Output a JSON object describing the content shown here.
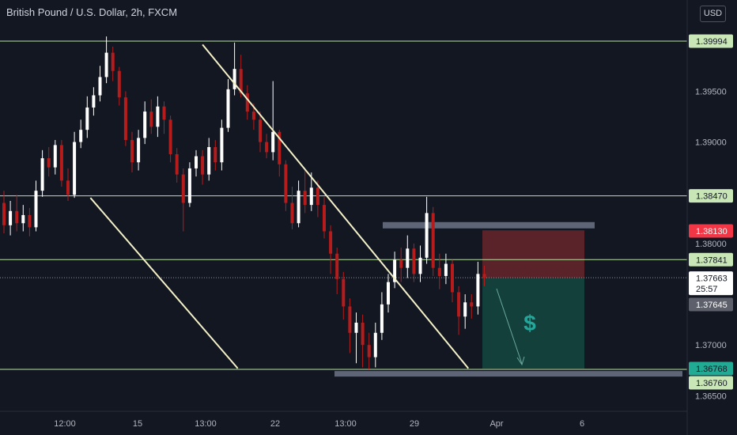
{
  "header": {
    "symbol_title": "British Pound / U.S. Dollar, 2h, FXCM",
    "currency_button": "USD"
  },
  "trade": {
    "icon": "$"
  },
  "colors": {
    "background": "#131722",
    "up_candle": "#ffffff",
    "down_candle": "#b71c1c",
    "hline": "#b7e4a3",
    "trendline": "#f5f2c8",
    "zone": "#5d6577",
    "stop_zone": "#5a2329",
    "target_zone": "#14403c"
  },
  "chart_data": {
    "type": "candlestick",
    "title": "British Pound / U.S. Dollar, 2h, FXCM",
    "ylim": [
      1.3625,
      1.4032
    ],
    "y_ticks": [
      "1.39500",
      "1.39000",
      "1.38000",
      "1.37000",
      "1.36500"
    ],
    "x_ticks": [
      "12:00",
      "15",
      "13:00",
      "22",
      "13:00",
      "29",
      "Apr",
      "6"
    ],
    "price_tags": [
      {
        "label": "1.39994",
        "kind": "level"
      },
      {
        "label": "1.38470",
        "kind": "level"
      },
      {
        "label": "1.38130",
        "kind": "stop"
      },
      {
        "label": "1.37841",
        "kind": "level"
      },
      {
        "label": "1.37663",
        "kind": "last",
        "countdown": "25:57"
      },
      {
        "label": "1.37645",
        "kind": "gray"
      },
      {
        "label": "1.36768",
        "kind": "target"
      },
      {
        "label": "1.36760",
        "kind": "level"
      }
    ],
    "horizontal_levels": [
      1.39994,
      1.3847,
      1.37841,
      1.3676
    ],
    "last_price": 1.37663,
    "resistance_zone": 1.3818,
    "support_zone": 1.3672,
    "position": {
      "type": "short",
      "entry": 1.37663,
      "stop": 1.3813,
      "target": 1.36768
    },
    "trendlines": [
      {
        "from": [
          31,
          1.3996
        ],
        "to": [
          72.5,
          1.3677
        ]
      },
      {
        "from": [
          13.5,
          1.3845
        ],
        "to": [
          36.5,
          1.3677
        ]
      }
    ],
    "candles": [
      [
        1.384,
        1.3818,
        1.3852,
        1.381
      ],
      [
        1.3818,
        1.3832,
        1.3842,
        1.3808
      ],
      [
        1.3832,
        1.382,
        1.3848,
        1.3812
      ],
      [
        1.382,
        1.3828,
        1.3838,
        1.3812
      ],
      [
        1.3828,
        1.3816,
        1.3835,
        1.3807
      ],
      [
        1.3816,
        1.3852,
        1.3862,
        1.3812
      ],
      [
        1.3852,
        1.3884,
        1.3892,
        1.3846
      ],
      [
        1.3884,
        1.3875,
        1.3895,
        1.3866
      ],
      [
        1.3875,
        1.3897,
        1.3902,
        1.3868
      ],
      [
        1.3897,
        1.3862,
        1.3902,
        1.3856
      ],
      [
        1.3862,
        1.3848,
        1.3874,
        1.3842
      ],
      [
        1.3848,
        1.39,
        1.391,
        1.3845
      ],
      [
        1.39,
        1.3912,
        1.3922,
        1.3894
      ],
      [
        1.3912,
        1.3934,
        1.3945,
        1.3904
      ],
      [
        1.3934,
        1.3946,
        1.3954,
        1.3926
      ],
      [
        1.3946,
        1.3964,
        1.3975,
        1.394
      ],
      [
        1.3964,
        1.3988,
        1.4004,
        1.3958
      ],
      [
        1.3988,
        1.397,
        1.3994,
        1.396
      ],
      [
        1.397,
        1.3944,
        1.3974,
        1.3936
      ],
      [
        1.3944,
        1.3902,
        1.395,
        1.3896
      ],
      [
        1.3902,
        1.388,
        1.391,
        1.387
      ],
      [
        1.388,
        1.3904,
        1.3912,
        1.3872
      ],
      [
        1.3904,
        1.393,
        1.394,
        1.3898
      ],
      [
        1.393,
        1.3915,
        1.3942,
        1.3908
      ],
      [
        1.3915,
        1.3935,
        1.3945,
        1.3905
      ],
      [
        1.3935,
        1.3922,
        1.394,
        1.3908
      ],
      [
        1.3922,
        1.3888,
        1.3926,
        1.388
      ],
      [
        1.3888,
        1.3868,
        1.3894,
        1.386
      ],
      [
        1.3868,
        1.384,
        1.3874,
        1.3812
      ],
      [
        1.384,
        1.3874,
        1.388,
        1.3836
      ],
      [
        1.3874,
        1.3886,
        1.3892,
        1.3866
      ],
      [
        1.3886,
        1.3868,
        1.3892,
        1.3858
      ],
      [
        1.3868,
        1.3895,
        1.3904,
        1.3862
      ],
      [
        1.3895,
        1.388,
        1.3902,
        1.3872
      ],
      [
        1.388,
        1.3914,
        1.3922,
        1.3872
      ],
      [
        1.3914,
        1.3952,
        1.3962,
        1.391
      ],
      [
        1.3952,
        1.3972,
        1.3998,
        1.3946
      ],
      [
        1.3972,
        1.3948,
        1.3986,
        1.3944
      ],
      [
        1.3948,
        1.393,
        1.3956,
        1.3922
      ],
      [
        1.393,
        1.3922,
        1.3938,
        1.3912
      ],
      [
        1.3922,
        1.39,
        1.393,
        1.389
      ],
      [
        1.39,
        1.389,
        1.3908,
        1.3884
      ],
      [
        1.389,
        1.391,
        1.396,
        1.3882
      ],
      [
        1.391,
        1.3878,
        1.3912,
        1.3866
      ],
      [
        1.3878,
        1.384,
        1.3882,
        1.3832
      ],
      [
        1.384,
        1.382,
        1.3856,
        1.3814
      ],
      [
        1.382,
        1.3852,
        1.3862,
        1.3816
      ],
      [
        1.3852,
        1.3838,
        1.3872,
        1.383
      ],
      [
        1.3838,
        1.3855,
        1.387,
        1.3832
      ],
      [
        1.3855,
        1.3838,
        1.3862,
        1.3826
      ],
      [
        1.3838,
        1.3812,
        1.3846,
        1.3805
      ],
      [
        1.3812,
        1.379,
        1.3818,
        1.377
      ],
      [
        1.379,
        1.3765,
        1.3796,
        1.375
      ],
      [
        1.3765,
        1.3738,
        1.3772,
        1.3725
      ],
      [
        1.3738,
        1.3712,
        1.3746,
        1.3692
      ],
      [
        1.3712,
        1.3722,
        1.3732,
        1.3682
      ],
      [
        1.3722,
        1.37,
        1.373,
        1.3678
      ],
      [
        1.37,
        1.3688,
        1.3712,
        1.3676
      ],
      [
        1.3688,
        1.3712,
        1.3722,
        1.3678
      ],
      [
        1.3712,
        1.374,
        1.3752,
        1.3705
      ],
      [
        1.374,
        1.3762,
        1.377,
        1.3732
      ],
      [
        1.3762,
        1.3784,
        1.3792,
        1.3756
      ],
      [
        1.3784,
        1.3776,
        1.3796,
        1.3762
      ],
      [
        1.3776,
        1.3795,
        1.3808,
        1.3766
      ],
      [
        1.3795,
        1.377,
        1.38,
        1.3762
      ],
      [
        1.377,
        1.3786,
        1.3798,
        1.3762
      ],
      [
        1.3786,
        1.383,
        1.3846,
        1.378
      ],
      [
        1.383,
        1.3776,
        1.3836,
        1.3768
      ],
      [
        1.3776,
        1.3768,
        1.379,
        1.3755
      ],
      [
        1.3768,
        1.378,
        1.379,
        1.376
      ],
      [
        1.378,
        1.3752,
        1.3784,
        1.3742
      ],
      [
        1.3752,
        1.3728,
        1.3758,
        1.371
      ],
      [
        1.3728,
        1.3742,
        1.375,
        1.3716
      ],
      [
        1.3742,
        1.3738,
        1.375,
        1.3726
      ],
      [
        1.3738,
        1.377,
        1.3782,
        1.373
      ],
      [
        1.377,
        1.3766,
        1.3778,
        1.3758
      ]
    ]
  }
}
